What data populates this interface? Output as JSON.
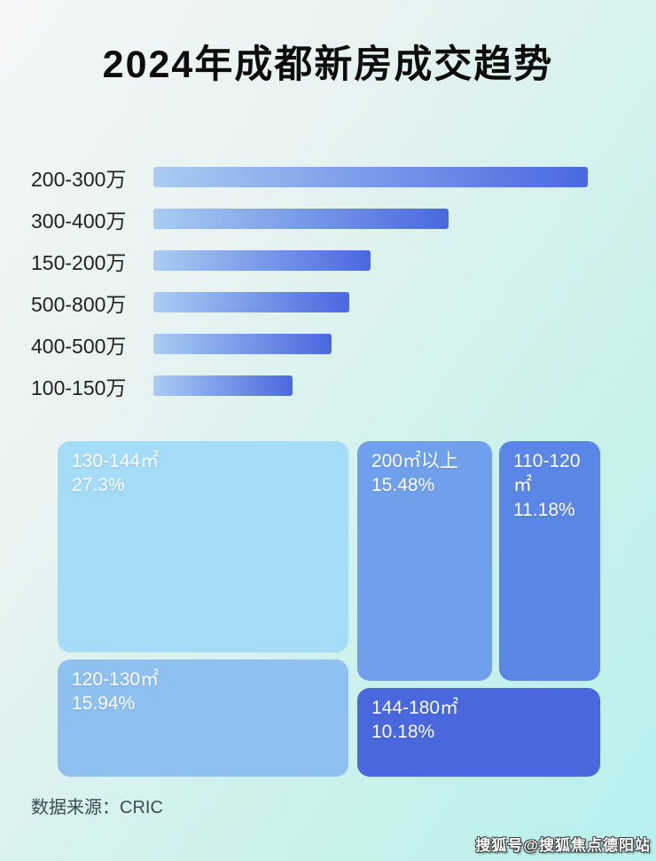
{
  "page": {
    "title": "2024年成都新房成交趋势",
    "footer": {
      "source_label": "数据来源：CRIC"
    },
    "watermark": "搜狐号@搜狐焦点德阳站",
    "colors": {
      "background_start": "#f5f6f7",
      "background_end": "#b6f1ee",
      "bar_gradient_start": "#a9ccf2",
      "bar_gradient_end": "#4a68e0",
      "title_color": "#0d0d0d",
      "footer_color": "#3b4a54"
    }
  },
  "chart_data": [
    {
      "type": "bar",
      "orientation": "horizontal",
      "title": "2024年成都新房成交趋势",
      "categories": [
        "200-300万",
        "300-400万",
        "150-200万",
        "500-800万",
        "400-500万",
        "100-150万"
      ],
      "values_relative_pct": [
        100,
        68,
        50,
        45,
        41,
        32
      ],
      "value_labels_shown": false,
      "axis_shown": false,
      "grid": false,
      "note": "bar lengths estimated from pixels; no numeric value labels visible"
    },
    {
      "type": "treemap",
      "items": [
        {
          "label": "130-144㎡",
          "value_pct": 27.3,
          "value_label": "27.3%",
          "color": "#a5dcf7"
        },
        {
          "label": "120-130㎡",
          "value_pct": 15.94,
          "value_label": "15.94%",
          "color": "#8fc1f0"
        },
        {
          "label": "200㎡以上",
          "value_pct": 15.48,
          "value_label": "15.48%",
          "color": "#70a0ec"
        },
        {
          "label": "110-120㎡",
          "value_pct": 11.18,
          "value_label": "11.18%",
          "color": "#5a86e6"
        },
        {
          "label": "144-180㎡",
          "value_pct": 10.18,
          "value_label": "10.18%",
          "color": "#4968dd"
        }
      ]
    }
  ]
}
